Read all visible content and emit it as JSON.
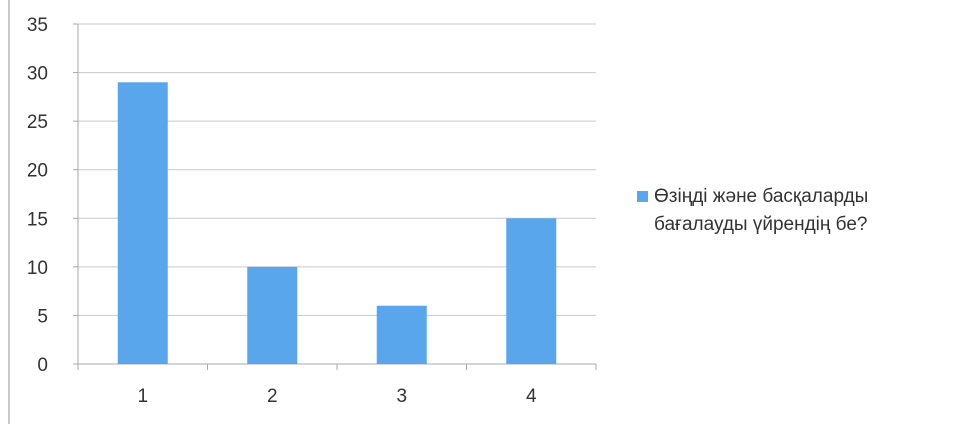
{
  "chart_data": {
    "type": "bar",
    "categories": [
      "1",
      "2",
      "3",
      "4"
    ],
    "series": [
      {
        "name": "Өзіңді және басқаларды\nбағалауды үйрендің бе?",
        "values": [
          29,
          10,
          6,
          15
        ],
        "color": "#5aa6ec"
      }
    ],
    "ylim": [
      0,
      35
    ],
    "yticks": [
      "0",
      "5",
      "10",
      "15",
      "20",
      "25",
      "30",
      "35"
    ],
    "grid": true,
    "legend": "right"
  },
  "colors": {
    "bar": "#5aa6ec",
    "grid": "#c9c9c9",
    "axis": "#a8a8a8",
    "text": "#333333"
  }
}
